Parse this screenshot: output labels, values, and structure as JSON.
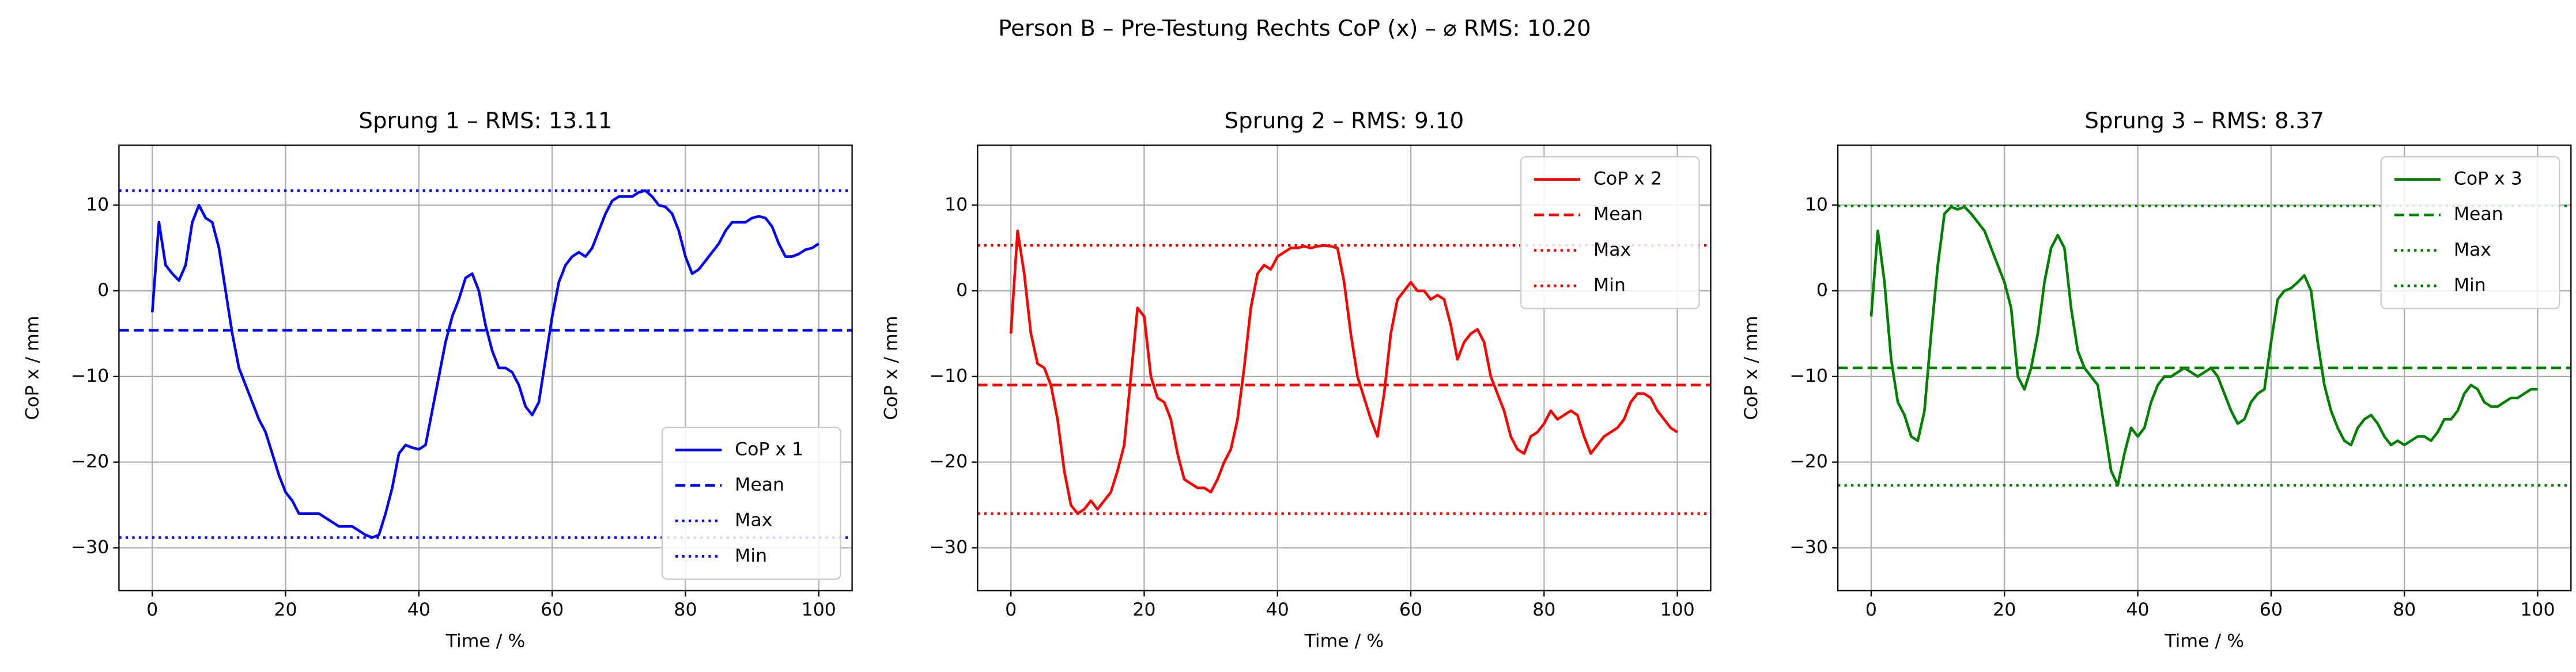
{
  "title": "Person B – Pre-Testung Rechts CoP (x) – ⌀ RMS: 10.20",
  "chart_data": [
    {
      "type": "line",
      "title": "Sprung 1 – RMS: 13.11",
      "xlabel": "Time / %",
      "ylabel": "CoP x / mm",
      "x": [
        0,
        1,
        2,
        3,
        4,
        5,
        6,
        7,
        8,
        9,
        10,
        11,
        12,
        13,
        14,
        15,
        16,
        17,
        18,
        19,
        20,
        21,
        22,
        23,
        24,
        25,
        26,
        27,
        28,
        29,
        30,
        31,
        32,
        33,
        34,
        35,
        36,
        37,
        38,
        39,
        40,
        41,
        42,
        43,
        44,
        45,
        46,
        47,
        48,
        49,
        50,
        51,
        52,
        53,
        54,
        55,
        56,
        57,
        58,
        59,
        60,
        61,
        62,
        63,
        64,
        65,
        66,
        67,
        68,
        69,
        70,
        71,
        72,
        73,
        74,
        75,
        76,
        77,
        78,
        79,
        80,
        81,
        82,
        83,
        84,
        85,
        86,
        87,
        88,
        89,
        90,
        91,
        92,
        93,
        94,
        95,
        96,
        97,
        98,
        99,
        100
      ],
      "series": [
        {
          "name": "CoP x 1",
          "color": "#0000ff",
          "values": [
            -2.5,
            8,
            3,
            2,
            1.2,
            3,
            8,
            10,
            8.5,
            8,
            5,
            0,
            -5,
            -9,
            -11,
            -13,
            -15,
            -16.5,
            -19,
            -21.5,
            -23.5,
            -24.5,
            -26,
            -26,
            -26,
            -26,
            -26.5,
            -27,
            -27.5,
            -27.5,
            -27.5,
            -28,
            -28.5,
            -28.8,
            -28.5,
            -26,
            -23,
            -19,
            -18,
            -18.3,
            -18.5,
            -18,
            -14,
            -10,
            -6,
            -3,
            -1,
            1.5,
            2,
            0,
            -4,
            -7,
            -9,
            -9,
            -9.5,
            -11,
            -13.5,
            -14.5,
            -13,
            -8,
            -3,
            1,
            3,
            4,
            4.5,
            4,
            5,
            7,
            9,
            10.5,
            11,
            11,
            11,
            11.5,
            11.7,
            11,
            10,
            9.8,
            9,
            7,
            4,
            2,
            2.5,
            3.5,
            4.5,
            5.5,
            7,
            8,
            8,
            8,
            8.5,
            8.7,
            8.5,
            7.5,
            5.5,
            4,
            4,
            4.3,
            4.8,
            5,
            5.5
          ]
        }
      ],
      "reference_lines": [
        {
          "name": "Mean",
          "value": -4.6,
          "color": "#0000ff",
          "dash": "dashed"
        },
        {
          "name": "Max",
          "value": 11.7,
          "color": "#0000ff",
          "dash": "dotted"
        },
        {
          "name": "Min",
          "value": -28.8,
          "color": "#0000ff",
          "dash": "dotted"
        }
      ],
      "xlim": [
        -5,
        105
      ],
      "ylim": [
        -35,
        17
      ],
      "xticks": [
        0,
        20,
        40,
        60,
        80,
        100
      ],
      "yticks": [
        {
          "value": -30,
          "label": "−30"
        },
        {
          "value": -20,
          "label": "−20"
        },
        {
          "value": -10,
          "label": "−10"
        },
        0,
        10
      ],
      "grid": true,
      "legend": "lower right"
    },
    {
      "type": "line",
      "title": "Sprung 2 – RMS: 9.10",
      "xlabel": "Time / %",
      "ylabel": "CoP x / mm",
      "x": [
        0,
        1,
        2,
        3,
        4,
        5,
        6,
        7,
        8,
        9,
        10,
        11,
        12,
        13,
        14,
        15,
        16,
        17,
        18,
        19,
        20,
        21,
        22,
        23,
        24,
        25,
        26,
        27,
        28,
        29,
        30,
        31,
        32,
        33,
        34,
        35,
        36,
        37,
        38,
        39,
        40,
        41,
        42,
        43,
        44,
        45,
        46,
        47,
        48,
        49,
        50,
        51,
        52,
        53,
        54,
        55,
        56,
        57,
        58,
        59,
        60,
        61,
        62,
        63,
        64,
        65,
        66,
        67,
        68,
        69,
        70,
        71,
        72,
        73,
        74,
        75,
        76,
        77,
        78,
        79,
        80,
        81,
        82,
        83,
        84,
        85,
        86,
        87,
        88,
        89,
        90,
        91,
        92,
        93,
        94,
        95,
        96,
        97,
        98,
        99,
        100
      ],
      "series": [
        {
          "name": "CoP x 2",
          "color": "#ff0000",
          "values": [
            -5,
            7,
            2,
            -5,
            -8.5,
            -9,
            -11,
            -15,
            -21,
            -25,
            -26,
            -25.5,
            -24.5,
            -25.5,
            -24.5,
            -23.5,
            -21,
            -18,
            -10,
            -2,
            -3,
            -10,
            -12.5,
            -13,
            -15,
            -19,
            -22,
            -22.5,
            -23,
            -23,
            -23.5,
            -22,
            -20,
            -18.5,
            -15,
            -9,
            -2,
            2,
            3,
            2.5,
            4,
            4.5,
            5,
            5,
            5.2,
            5,
            5.2,
            5.3,
            5.2,
            5,
            1,
            -5,
            -10,
            -12.5,
            -15,
            -17,
            -12,
            -5,
            -1,
            0,
            1,
            0,
            0,
            -1,
            -0.5,
            -1,
            -4,
            -8,
            -6,
            -5,
            -4.5,
            -6,
            -10,
            -12,
            -14,
            -17,
            -18.5,
            -19,
            -17,
            -16.5,
            -15.5,
            -14,
            -15,
            -14.5,
            -14,
            -14.5,
            -17,
            -19,
            -18,
            -17,
            -16.5,
            -16,
            -15,
            -13,
            -12,
            -12,
            -12.5,
            -14,
            -15,
            -16,
            -16.5
          ]
        }
      ],
      "reference_lines": [
        {
          "name": "Mean",
          "value": -11,
          "color": "#ff0000",
          "dash": "dashed"
        },
        {
          "name": "Max",
          "value": 5.3,
          "color": "#ff0000",
          "dash": "dotted"
        },
        {
          "name": "Min",
          "value": -26,
          "color": "#ff0000",
          "dash": "dotted"
        }
      ],
      "xlim": [
        -5,
        105
      ],
      "ylim": [
        -35,
        17
      ],
      "xticks": [
        0,
        20,
        40,
        60,
        80,
        100
      ],
      "yticks": [
        {
          "value": -30,
          "label": "−30"
        },
        {
          "value": -20,
          "label": "−20"
        },
        {
          "value": -10,
          "label": "−10"
        },
        0,
        10
      ],
      "grid": true,
      "legend": "upper right"
    },
    {
      "type": "line",
      "title": "Sprung 3 – RMS: 8.37",
      "xlabel": "Time / %",
      "ylabel": "CoP x / mm",
      "x": [
        0,
        1,
        2,
        3,
        4,
        5,
        6,
        7,
        8,
        9,
        10,
        11,
        12,
        13,
        14,
        15,
        16,
        17,
        18,
        19,
        20,
        21,
        22,
        23,
        24,
        25,
        26,
        27,
        28,
        29,
        30,
        31,
        32,
        33,
        34,
        35,
        36,
        37,
        38,
        39,
        40,
        41,
        42,
        43,
        44,
        45,
        46,
        47,
        48,
        49,
        50,
        51,
        52,
        53,
        54,
        55,
        56,
        57,
        58,
        59,
        60,
        61,
        62,
        63,
        64,
        65,
        66,
        67,
        68,
        69,
        70,
        71,
        72,
        73,
        74,
        75,
        76,
        77,
        78,
        79,
        80,
        81,
        82,
        83,
        84,
        85,
        86,
        87,
        88,
        89,
        90,
        91,
        92,
        93,
        94,
        95,
        96,
        97,
        98,
        99,
        100
      ],
      "series": [
        {
          "name": "CoP x 3",
          "color": "#008000",
          "values": [
            -3,
            7,
            1,
            -8,
            -13,
            -14.5,
            -17,
            -17.5,
            -14,
            -5,
            3,
            9,
            9.8,
            9.5,
            9.8,
            9,
            8,
            7,
            5,
            3,
            1,
            -2,
            -10,
            -11.5,
            -9,
            -5,
            1,
            5,
            6.5,
            5,
            -2,
            -7,
            -9,
            -10,
            -11,
            -16,
            -21,
            -22.7,
            -19,
            -16,
            -17,
            -16,
            -13,
            -11,
            -10,
            -10,
            -9.5,
            -9,
            -9.5,
            -10,
            -9.5,
            -9,
            -10,
            -12,
            -14,
            -15.5,
            -15,
            -13,
            -12,
            -11.5,
            -6,
            -1,
            0,
            0.3,
            1,
            1.8,
            0,
            -6,
            -11,
            -14,
            -16,
            -17.5,
            -18,
            -16,
            -15,
            -14.5,
            -15.5,
            -17,
            -18,
            -17.5,
            -18,
            -17.5,
            -17,
            -17,
            -17.5,
            -16.5,
            -15,
            -15,
            -14,
            -12,
            -11,
            -11.5,
            -13,
            -13.5,
            -13.5,
            -13,
            -12.5,
            -12.5,
            -12,
            -11.5,
            -11.5
          ]
        }
      ],
      "reference_lines": [
        {
          "name": "Mean",
          "value": -9,
          "color": "#008000",
          "dash": "dashed"
        },
        {
          "name": "Max",
          "value": 9.9,
          "color": "#008000",
          "dash": "dotted"
        },
        {
          "name": "Min",
          "value": -22.7,
          "color": "#008000",
          "dash": "dotted"
        }
      ],
      "xlim": [
        -5,
        105
      ],
      "ylim": [
        -35,
        17
      ],
      "xticks": [
        0,
        20,
        40,
        60,
        80,
        100
      ],
      "yticks": [
        {
          "value": -30,
          "label": "−30"
        },
        {
          "value": -20,
          "label": "−20"
        },
        {
          "value": -10,
          "label": "−10"
        },
        0,
        10
      ],
      "grid": true,
      "legend": "upper right"
    }
  ]
}
